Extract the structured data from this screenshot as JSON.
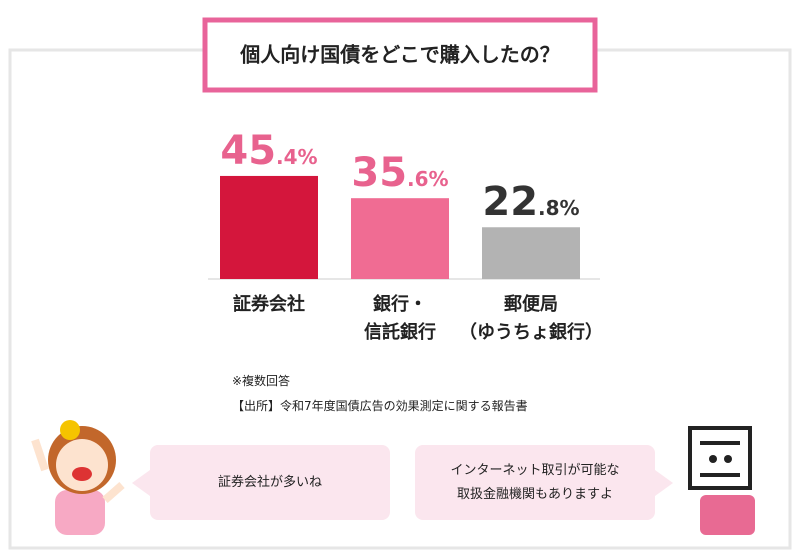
{
  "chart_data": {
    "type": "bar",
    "title": "個人向け国債をどこで購入したの？",
    "categories": [
      "証券会社",
      "銀行・\n信託銀行",
      "郵便局\n（ゆうちょ銀行）"
    ],
    "values": [
      45.4,
      35.6,
      22.8
    ],
    "value_labels": [
      "45.4%",
      "35.6%",
      "22.8%"
    ],
    "colors": [
      "#d4163c",
      "#f06c93",
      "#b3b3b3"
    ],
    "label_colors": [
      "#e8628e",
      "#e8628e",
      "#333333"
    ]
  },
  "notes": [
    "※複数回答",
    "【出所】令和7年度国債広告の効果測定に関する報告書"
  ],
  "speech": [
    "証券会社が多いね",
    "インターネット取引が可能な\n取扱金融機関もありますよ"
  ]
}
